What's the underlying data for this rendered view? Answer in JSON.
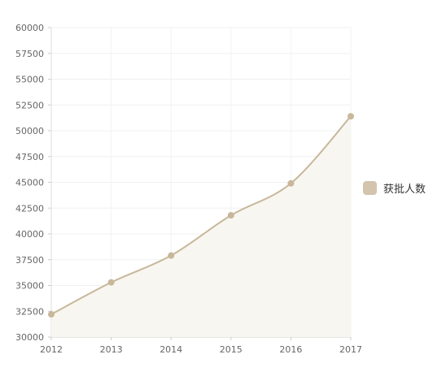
{
  "chart_data": {
    "type": "line",
    "x": [
      "2012",
      "2013",
      "2014",
      "2015",
      "2016",
      "2017"
    ],
    "series": [
      {
        "name": "获批人数",
        "values": [
          32200,
          35300,
          37900,
          41800,
          44900,
          51400
        ],
        "color": "#c8b79a",
        "fill": "#f8f6f1",
        "smooth": true,
        "area": true
      }
    ],
    "ylim": [
      30000,
      60000
    ],
    "yticks": [
      30000,
      32500,
      35000,
      37500,
      40000,
      42500,
      45000,
      47500,
      50000,
      52500,
      55000,
      57500,
      60000
    ],
    "grid": true,
    "legend_position": "right",
    "title": "",
    "xlabel": "",
    "ylabel": ""
  },
  "legend": {
    "label": "获批人数",
    "swatch_color": "#d3c4ad"
  }
}
